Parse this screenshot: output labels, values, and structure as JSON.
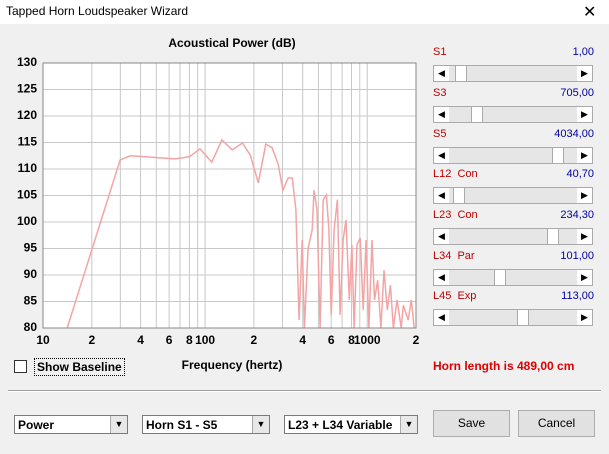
{
  "window": {
    "title": "Tapped Horn Loudspeaker Wizard"
  },
  "chart_data": {
    "type": "line",
    "title": "Acoustical Power (dB)",
    "xlabel": "Frequency (hertz)",
    "x": [
      14.1,
      29.9,
      34.5,
      42.6,
      65,
      80,
      93,
      110,
      127,
      147,
      170,
      190,
      213,
      237,
      259,
      283,
      302,
      325,
      345,
      363,
      380,
      397,
      410,
      432,
      458,
      470,
      490,
      512,
      535,
      560,
      580,
      600,
      625,
      655,
      680,
      710,
      740,
      775,
      805,
      830,
      865,
      905,
      945,
      985,
      1025,
      1070,
      1110,
      1160,
      1215,
      1270,
      1330,
      1390,
      1450,
      1530,
      1620,
      1670,
      1790,
      1870,
      1950
    ],
    "values": [
      80,
      111.7,
      112.5,
      112.3,
      111.9,
      112.3,
      113.8,
      111.3,
      115.5,
      113.6,
      114.9,
      112.6,
      107.4,
      114.7,
      114,
      110.8,
      106,
      108.3,
      108.3,
      102.3,
      81.5,
      96.6,
      80,
      95,
      98.5,
      106,
      102.3,
      80,
      104.2,
      105.1,
      98.5,
      82.5,
      98.5,
      104.2,
      82.5,
      96.6,
      100.4,
      85.3,
      95.7,
      80,
      95.7,
      97,
      83.4,
      96.6,
      80,
      96.6,
      85.3,
      89,
      80,
      90.9,
      83.4,
      88.1,
      80,
      85.3,
      80,
      84.3,
      81.5,
      85.3,
      80
    ],
    "color": "#f4a4a4",
    "log_x": true,
    "grid": true,
    "xlim": [
      10,
      2000
    ],
    "xticks": [
      10,
      {
        "value": 20,
        "label": "2"
      },
      {
        "value": 40,
        "label": "4"
      },
      {
        "value": 60,
        "label": "6"
      },
      {
        "value": 80,
        "label": "8"
      },
      100,
      {
        "value": 200,
        "label": "2"
      },
      {
        "value": 400,
        "label": "4"
      },
      {
        "value": 600,
        "label": "6"
      },
      {
        "value": 800,
        "label": "8"
      },
      1000,
      {
        "value": 2000,
        "label": "2"
      }
    ],
    "x_minor_grid": [
      30,
      50,
      70,
      90,
      300,
      500,
      700,
      900
    ],
    "ylim": [
      80,
      130
    ],
    "yticks": [
      80,
      85,
      90,
      95,
      100,
      105,
      110,
      115,
      120,
      125,
      130
    ]
  },
  "sliders": [
    {
      "label": "S1",
      "value": "1,00"
    },
    {
      "label": "S3",
      "value": "705,00"
    },
    {
      "label": "S5",
      "value": "4034,00"
    },
    {
      "label": "L12  Con",
      "value": "40,70"
    },
    {
      "label": "L23  Con",
      "value": "234,30"
    },
    {
      "label": "L34  Par",
      "value": "101,00"
    },
    {
      "label": "L45  Exp",
      "value": "113,00"
    }
  ],
  "checkbox": {
    "label": "Show Baseline"
  },
  "status": "Horn length is 489,00 cm",
  "dropdowns": [
    "Power",
    "Horn S1 - S5",
    "L23 + L34 Variable"
  ],
  "buttons": [
    "Save",
    "Cancel"
  ]
}
